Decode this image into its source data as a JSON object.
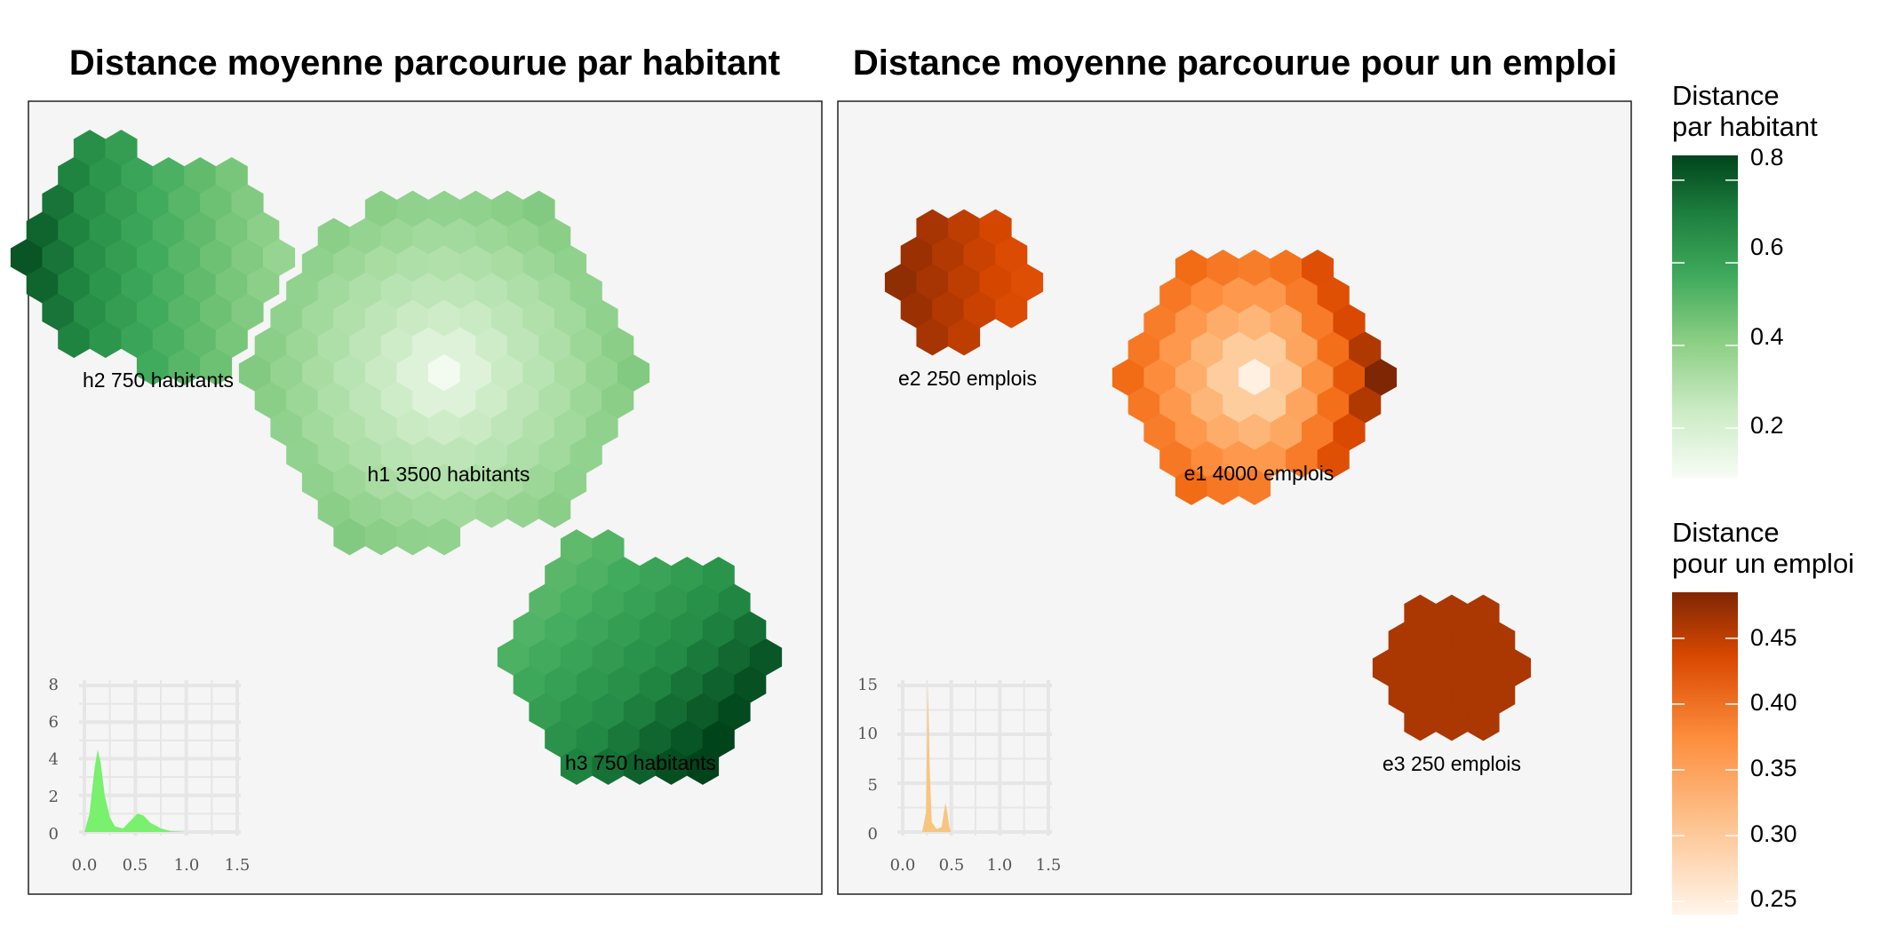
{
  "chart_data": [
    {
      "type": "hexmap",
      "title": "Distance moyenne parcourue par habitant",
      "clusters": [
        {
          "label": "h2 750 habitants",
          "name": "h2",
          "count": 750,
          "value_range": [
            0.45,
            0.78
          ]
        },
        {
          "label": "h1 3500 habitants",
          "name": "h1",
          "count": 3500,
          "value_range": [
            0.08,
            0.32
          ]
        },
        {
          "label": "h3 750 habitants",
          "name": "h3",
          "count": 750,
          "value_range": [
            0.5,
            0.85
          ]
        }
      ],
      "inset": {
        "type": "area",
        "color": "#79f06e",
        "x_ticks": [
          "0.0",
          "0.5",
          "1.0",
          "1.5"
        ],
        "y_ticks": [
          "0",
          "2",
          "4",
          "6",
          "8"
        ],
        "xlim": [
          0,
          1.5
        ],
        "ylim": [
          0,
          8
        ],
        "points": [
          [
            0.0,
            0
          ],
          [
            0.05,
            1.0
          ],
          [
            0.1,
            3.5
          ],
          [
            0.13,
            4.5
          ],
          [
            0.16,
            3.8
          ],
          [
            0.2,
            2.0
          ],
          [
            0.25,
            0.8
          ],
          [
            0.3,
            0.3
          ],
          [
            0.38,
            0.2
          ],
          [
            0.45,
            0.6
          ],
          [
            0.52,
            1.0
          ],
          [
            0.58,
            0.9
          ],
          [
            0.65,
            0.5
          ],
          [
            0.75,
            0.2
          ],
          [
            0.85,
            0.05
          ],
          [
            1.0,
            0
          ]
        ]
      }
    },
    {
      "type": "hexmap",
      "title": "Distance moyenne parcourue pour un emploi",
      "clusters": [
        {
          "label": "e2 250 emplois",
          "name": "e2",
          "count": 250,
          "value_range": [
            0.42,
            0.48
          ]
        },
        {
          "label": "e1 4000 emplois",
          "name": "e1",
          "count": 4000,
          "value_range": [
            0.24,
            0.38
          ]
        },
        {
          "label": "e3 250 emplois",
          "name": "e3",
          "count": 250,
          "value_range": [
            0.45,
            0.48
          ]
        }
      ],
      "inset": {
        "type": "area",
        "color": "#f8c580",
        "x_ticks": [
          "0.0",
          "0.5",
          "1.0",
          "1.5"
        ],
        "y_ticks": [
          "0",
          "5",
          "10",
          "15"
        ],
        "xlim": [
          0,
          1.5
        ],
        "ylim": [
          0,
          15
        ],
        "points": [
          [
            0.2,
            0
          ],
          [
            0.24,
            2
          ],
          [
            0.26,
            15
          ],
          [
            0.28,
            6
          ],
          [
            0.3,
            1
          ],
          [
            0.35,
            0.3
          ],
          [
            0.4,
            0.5
          ],
          [
            0.44,
            3
          ],
          [
            0.46,
            2
          ],
          [
            0.48,
            0.5
          ],
          [
            0.5,
            0
          ]
        ]
      }
    }
  ],
  "legends": [
    {
      "title_lines": [
        "Distance",
        "par habitant"
      ],
      "ticks": [
        "0.8",
        "0.6",
        "0.4",
        "0.2"
      ],
      "tick_values": [
        0.8,
        0.6,
        0.4,
        0.2
      ],
      "range": [
        0.08,
        0.86
      ],
      "colors": [
        "#00441b",
        "#238b45",
        "#41ab5d",
        "#74c476",
        "#a1d99b",
        "#c7e9c0",
        "#f7fcf5"
      ]
    },
    {
      "title_lines": [
        "Distance",
        "pour un emploi"
      ],
      "ticks": [
        "0.45",
        "0.40",
        "0.35",
        "0.30",
        "0.25"
      ],
      "tick_values": [
        0.45,
        0.4,
        0.35,
        0.3,
        0.25
      ],
      "range": [
        0.24,
        0.485
      ],
      "colors": [
        "#7f2704",
        "#d94801",
        "#f16913",
        "#fd8d3c",
        "#fdae6b",
        "#fdd0a2",
        "#fff5eb"
      ]
    }
  ]
}
